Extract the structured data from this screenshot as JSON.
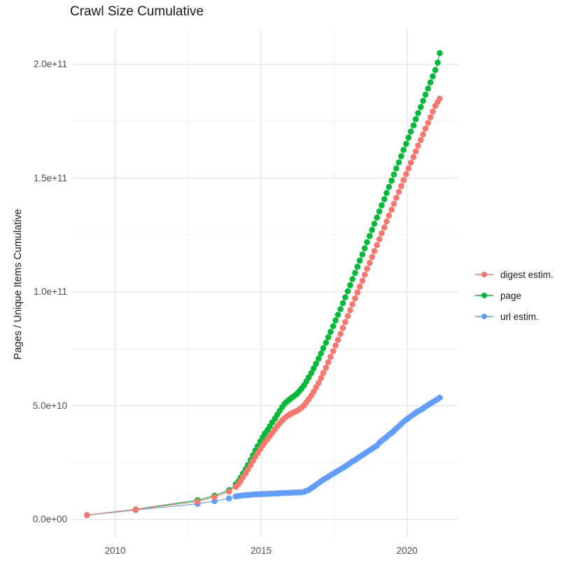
{
  "title": "Crawl Size Cumulative",
  "axes": {
    "y_label": "Pages / Unique Items Cumulative",
    "x_label": "",
    "y_tick_labels": [
      "0.0e+00",
      "5.0e+10",
      "1.0e+11",
      "1.5e+11",
      "2.0e+11"
    ],
    "x_tick_labels": [
      "2010",
      "2015",
      "2020"
    ]
  },
  "legend": {
    "position": "right",
    "items": [
      {
        "label": "digest estim.",
        "color": "#F8766D"
      },
      {
        "label": "page",
        "color": "#00BA38"
      },
      {
        "label": "url estim.",
        "color": "#619CFF"
      }
    ]
  },
  "style": {
    "background": "#ffffff",
    "grid_major_color": "#e3e3e3",
    "grid_minor_color": "#eeeeee",
    "tick_text_color": "#4d4d4d",
    "text_color": "#1a1a1a"
  },
  "chart_data": {
    "type": "scatter",
    "title": "Crawl Size Cumulative",
    "xlabel": "",
    "ylabel": "Pages / Unique Items Cumulative",
    "x_is_year_decimal": true,
    "value_unit_multiplier": 1000000000.0,
    "value_unit_note": "point values below are in billions (1e9) of pages / unique items, cumulative",
    "x_range": [
      2008.5,
      2021.75
    ],
    "y_range_billion": [
      -8,
      215
    ],
    "x_tick_values": [
      2010,
      2015,
      2020
    ],
    "x_minor_tick_values": [
      2012.5,
      2017.5
    ],
    "y_tick_values_billion": [
      0,
      50,
      100,
      150,
      200
    ],
    "y_minor_tick_values_billion": [
      25,
      75,
      125,
      175
    ],
    "grid": "major+minor",
    "legend_position": "right",
    "marker": "filled-circle-with-line",
    "series": [
      {
        "name": "digest estim.",
        "color": "#F8766D",
        "points": [
          [
            2009.03,
            1.9
          ],
          [
            2010.7,
            4.4
          ],
          [
            2012.82,
            7.9
          ],
          [
            2013.4,
            9.9
          ],
          [
            2013.9,
            12.3
          ],
          [
            2014.13,
            14.4
          ],
          [
            2014.22,
            15.6
          ],
          [
            2014.3,
            17.1
          ],
          [
            2014.38,
            18.7
          ],
          [
            2014.47,
            20.4
          ],
          [
            2014.55,
            22.0
          ],
          [
            2014.64,
            23.9
          ],
          [
            2014.72,
            25.8
          ],
          [
            2014.8,
            27.6
          ],
          [
            2014.88,
            29.2
          ],
          [
            2014.97,
            31.0
          ],
          [
            2015.05,
            32.5
          ],
          [
            2015.13,
            34.0
          ],
          [
            2015.22,
            35.4
          ],
          [
            2015.3,
            36.8
          ],
          [
            2015.38,
            38.1
          ],
          [
            2015.47,
            39.6
          ],
          [
            2015.55,
            41.0
          ],
          [
            2015.63,
            42.3
          ],
          [
            2015.72,
            43.5
          ],
          [
            2015.8,
            44.6
          ],
          [
            2015.88,
            45.4
          ],
          [
            2015.97,
            46.1
          ],
          [
            2016.05,
            46.7
          ],
          [
            2016.13,
            47.2
          ],
          [
            2016.22,
            47.7
          ],
          [
            2016.3,
            48.3
          ],
          [
            2016.38,
            49.1
          ],
          [
            2016.47,
            50.2
          ],
          [
            2016.55,
            51.5
          ],
          [
            2016.63,
            52.9
          ],
          [
            2016.72,
            54.5
          ],
          [
            2016.8,
            56.2
          ],
          [
            2016.88,
            58.1
          ],
          [
            2016.97,
            60.1
          ],
          [
            2017.05,
            62.2
          ],
          [
            2017.13,
            64.4
          ],
          [
            2017.22,
            66.7
          ],
          [
            2017.3,
            69.1
          ],
          [
            2017.38,
            71.5
          ],
          [
            2017.47,
            74.0
          ],
          [
            2017.55,
            76.5
          ],
          [
            2017.63,
            79.0
          ],
          [
            2017.72,
            81.6
          ],
          [
            2017.8,
            84.2
          ],
          [
            2017.88,
            86.8
          ],
          [
            2017.97,
            89.4
          ],
          [
            2018.05,
            92.0
          ],
          [
            2018.13,
            94.6
          ],
          [
            2018.22,
            97.2
          ],
          [
            2018.3,
            99.8
          ],
          [
            2018.38,
            102.4
          ],
          [
            2018.47,
            105.0
          ],
          [
            2018.55,
            107.6
          ],
          [
            2018.63,
            110.2
          ],
          [
            2018.72,
            112.8
          ],
          [
            2018.8,
            115.4
          ],
          [
            2018.88,
            118.0
          ],
          [
            2018.97,
            120.6
          ],
          [
            2019.05,
            123.2
          ],
          [
            2019.13,
            125.8
          ],
          [
            2019.22,
            128.4
          ],
          [
            2019.3,
            131.0
          ],
          [
            2019.38,
            133.6
          ],
          [
            2019.47,
            136.2
          ],
          [
            2019.55,
            138.8
          ],
          [
            2019.63,
            141.4
          ],
          [
            2019.72,
            144.0
          ],
          [
            2019.8,
            146.6
          ],
          [
            2019.88,
            149.2
          ],
          [
            2019.97,
            151.8
          ],
          [
            2020.05,
            154.3
          ],
          [
            2020.13,
            156.8
          ],
          [
            2020.22,
            159.3
          ],
          [
            2020.3,
            161.8
          ],
          [
            2020.38,
            164.3
          ],
          [
            2020.47,
            166.8
          ],
          [
            2020.55,
            169.3
          ],
          [
            2020.63,
            171.8
          ],
          [
            2020.72,
            174.3
          ],
          [
            2020.8,
            176.8
          ],
          [
            2020.88,
            179.3
          ],
          [
            2020.97,
            181.8
          ],
          [
            2021.05,
            183.5
          ],
          [
            2021.12,
            185.0
          ]
        ]
      },
      {
        "name": "page",
        "color": "#00BA38",
        "points": [
          [
            2009.03,
            1.9
          ],
          [
            2010.7,
            4.5
          ],
          [
            2012.82,
            8.5
          ],
          [
            2013.4,
            10.5
          ],
          [
            2013.9,
            12.9
          ],
          [
            2014.13,
            15.5
          ],
          [
            2014.22,
            16.8
          ],
          [
            2014.3,
            18.5
          ],
          [
            2014.38,
            20.3
          ],
          [
            2014.47,
            22.2
          ],
          [
            2014.55,
            24.0
          ],
          [
            2014.64,
            26.2
          ],
          [
            2014.72,
            28.3
          ],
          [
            2014.8,
            30.3
          ],
          [
            2014.88,
            32.2
          ],
          [
            2014.97,
            34.3
          ],
          [
            2015.05,
            36.1
          ],
          [
            2015.13,
            37.8
          ],
          [
            2015.22,
            39.4
          ],
          [
            2015.3,
            41.0
          ],
          [
            2015.38,
            42.7
          ],
          [
            2015.47,
            44.3
          ],
          [
            2015.55,
            46.0
          ],
          [
            2015.63,
            47.7
          ],
          [
            2015.72,
            49.4
          ],
          [
            2015.8,
            50.8
          ],
          [
            2015.88,
            51.8
          ],
          [
            2015.97,
            52.7
          ],
          [
            2016.05,
            53.5
          ],
          [
            2016.13,
            54.3
          ],
          [
            2016.22,
            55.2
          ],
          [
            2016.3,
            56.3
          ],
          [
            2016.38,
            57.5
          ],
          [
            2016.47,
            59.0
          ],
          [
            2016.55,
            60.7
          ],
          [
            2016.63,
            62.5
          ],
          [
            2016.72,
            64.4
          ],
          [
            2016.8,
            66.4
          ],
          [
            2016.88,
            68.5
          ],
          [
            2016.97,
            70.7
          ],
          [
            2017.05,
            73.0
          ],
          [
            2017.13,
            75.3
          ],
          [
            2017.22,
            77.7
          ],
          [
            2017.3,
            80.1
          ],
          [
            2017.38,
            82.5
          ],
          [
            2017.47,
            85.0
          ],
          [
            2017.55,
            87.5
          ],
          [
            2017.63,
            90.0
          ],
          [
            2017.72,
            92.5
          ],
          [
            2017.8,
            95.1
          ],
          [
            2017.88,
            97.7
          ],
          [
            2017.97,
            100.3
          ],
          [
            2018.05,
            103.0
          ],
          [
            2018.13,
            105.7
          ],
          [
            2018.22,
            108.4
          ],
          [
            2018.3,
            111.1
          ],
          [
            2018.38,
            113.8
          ],
          [
            2018.47,
            116.5
          ],
          [
            2018.55,
            119.2
          ],
          [
            2018.63,
            121.9
          ],
          [
            2018.72,
            124.6
          ],
          [
            2018.8,
            127.3
          ],
          [
            2018.88,
            130.0
          ],
          [
            2018.97,
            132.7
          ],
          [
            2019.05,
            135.4
          ],
          [
            2019.13,
            138.1
          ],
          [
            2019.22,
            140.8
          ],
          [
            2019.3,
            143.5
          ],
          [
            2019.38,
            146.2
          ],
          [
            2019.47,
            148.9
          ],
          [
            2019.55,
            151.6
          ],
          [
            2019.63,
            154.3
          ],
          [
            2019.72,
            157.0
          ],
          [
            2019.8,
            159.7
          ],
          [
            2019.88,
            162.4
          ],
          [
            2019.97,
            165.1
          ],
          [
            2020.05,
            167.8
          ],
          [
            2020.13,
            170.5
          ],
          [
            2020.22,
            173.2
          ],
          [
            2020.3,
            175.9
          ],
          [
            2020.38,
            178.6
          ],
          [
            2020.47,
            181.3
          ],
          [
            2020.55,
            184.0
          ],
          [
            2020.63,
            186.7
          ],
          [
            2020.72,
            189.4
          ],
          [
            2020.8,
            192.1
          ],
          [
            2020.88,
            194.8
          ],
          [
            2020.97,
            197.5
          ],
          [
            2021.05,
            200.8
          ],
          [
            2021.12,
            205.0
          ]
        ]
      },
      {
        "name": "url estim.",
        "color": "#619CFF",
        "points": [
          [
            2009.03,
            1.9
          ],
          [
            2010.7,
            4.2
          ],
          [
            2012.82,
            6.9
          ],
          [
            2013.4,
            8.1
          ],
          [
            2013.9,
            9.3
          ],
          [
            2014.13,
            10.2
          ],
          [
            2014.22,
            10.35
          ],
          [
            2014.3,
            10.5
          ],
          [
            2014.38,
            10.6
          ],
          [
            2014.47,
            10.7
          ],
          [
            2014.55,
            10.8
          ],
          [
            2014.64,
            10.9
          ],
          [
            2014.72,
            11.0
          ],
          [
            2014.8,
            11.05
          ],
          [
            2014.88,
            11.1
          ],
          [
            2014.97,
            11.15
          ],
          [
            2015.05,
            11.2
          ],
          [
            2015.13,
            11.25
          ],
          [
            2015.22,
            11.3
          ],
          [
            2015.3,
            11.35
          ],
          [
            2015.38,
            11.4
          ],
          [
            2015.47,
            11.45
          ],
          [
            2015.55,
            11.5
          ],
          [
            2015.63,
            11.55
          ],
          [
            2015.72,
            11.6
          ],
          [
            2015.8,
            11.65
          ],
          [
            2015.88,
            11.7
          ],
          [
            2015.97,
            11.75
          ],
          [
            2016.05,
            11.8
          ],
          [
            2016.13,
            11.85
          ],
          [
            2016.22,
            11.9
          ],
          [
            2016.3,
            11.95
          ],
          [
            2016.38,
            12.0
          ],
          [
            2016.47,
            12.2
          ],
          [
            2016.55,
            12.6
          ],
          [
            2016.63,
            13.0
          ],
          [
            2016.72,
            13.8
          ],
          [
            2016.8,
            14.5
          ],
          [
            2016.88,
            15.2
          ],
          [
            2016.97,
            16.0
          ],
          [
            2017.05,
            16.8
          ],
          [
            2017.13,
            17.5
          ],
          [
            2017.22,
            18.2
          ],
          [
            2017.3,
            18.8
          ],
          [
            2017.38,
            19.5
          ],
          [
            2017.47,
            20.2
          ],
          [
            2017.55,
            20.8
          ],
          [
            2017.63,
            21.4
          ],
          [
            2017.72,
            22.0
          ],
          [
            2017.8,
            22.7
          ],
          [
            2017.88,
            23.3
          ],
          [
            2017.97,
            24.1
          ],
          [
            2018.05,
            24.8
          ],
          [
            2018.13,
            25.5
          ],
          [
            2018.22,
            26.2
          ],
          [
            2018.3,
            26.9
          ],
          [
            2018.38,
            27.6
          ],
          [
            2018.47,
            28.3
          ],
          [
            2018.55,
            29.0
          ],
          [
            2018.63,
            29.7
          ],
          [
            2018.72,
            30.4
          ],
          [
            2018.8,
            31.1
          ],
          [
            2018.88,
            31.8
          ],
          [
            2018.97,
            32.5
          ],
          [
            2019.05,
            33.7
          ],
          [
            2019.13,
            34.6
          ],
          [
            2019.22,
            35.5
          ],
          [
            2019.3,
            36.3
          ],
          [
            2019.38,
            37.2
          ],
          [
            2019.47,
            38.1
          ],
          [
            2019.55,
            39.0
          ],
          [
            2019.63,
            40.0
          ],
          [
            2019.72,
            41.0
          ],
          [
            2019.8,
            42.0
          ],
          [
            2019.88,
            43.0
          ],
          [
            2019.97,
            43.8
          ],
          [
            2020.05,
            44.6
          ],
          [
            2020.13,
            45.4
          ],
          [
            2020.22,
            46.2
          ],
          [
            2020.3,
            46.9
          ],
          [
            2020.38,
            47.6
          ],
          [
            2020.47,
            48.2
          ],
          [
            2020.55,
            48.8
          ],
          [
            2020.63,
            49.6
          ],
          [
            2020.72,
            50.3
          ],
          [
            2020.8,
            51.0
          ],
          [
            2020.88,
            51.6
          ],
          [
            2020.97,
            52.3
          ],
          [
            2021.05,
            53.0
          ],
          [
            2021.12,
            53.5
          ]
        ]
      }
    ]
  }
}
